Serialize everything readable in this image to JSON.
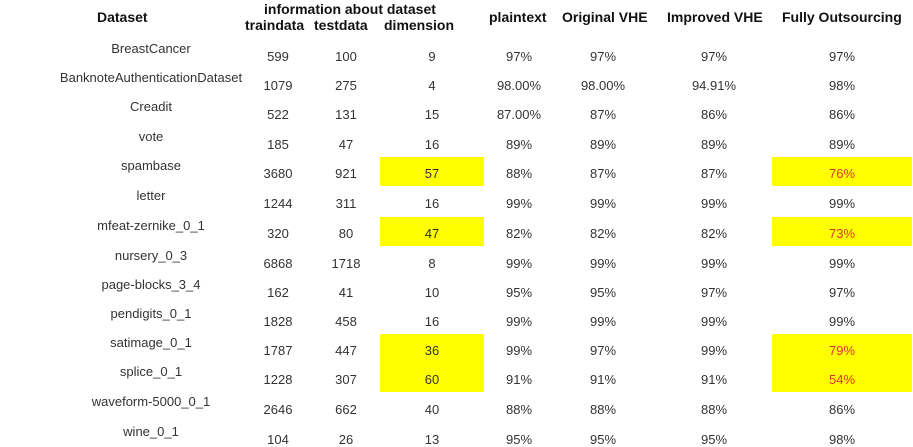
{
  "headers": {
    "dataset": "Dataset",
    "info": "information about dataset",
    "traindata": "traindata",
    "testdata": "testdata",
    "dimension": "dimension",
    "plaintext": "plaintext",
    "original_vhe": "Original VHE",
    "improved_vhe": "Improved VHE",
    "fully_outsourcing": "Fully Outsourcing"
  },
  "highlight_color": "#ffff00",
  "highlight_text_color": "#e0352b",
  "rows": [
    {
      "dataset": "BreastCancer",
      "traindata": "599",
      "testdata": "100",
      "dimension": "9",
      "plaintext": "97%",
      "original_vhe": "97%",
      "improved_vhe": "97%",
      "fully_outsourcing": "97%",
      "highlight": false
    },
    {
      "dataset": "BanknoteAuthenticationDataset",
      "traindata": "1079",
      "testdata": "275",
      "dimension": "4",
      "plaintext": "98.00%",
      "original_vhe": "98.00%",
      "improved_vhe": "94.91%",
      "fully_outsourcing": "98%",
      "highlight": false
    },
    {
      "dataset": "Creadit",
      "traindata": "522",
      "testdata": "131",
      "dimension": "15",
      "plaintext": "87.00%",
      "original_vhe": "87%",
      "improved_vhe": "86%",
      "fully_outsourcing": "86%",
      "highlight": false
    },
    {
      "dataset": "vote",
      "traindata": "185",
      "testdata": "47",
      "dimension": "16",
      "plaintext": "89%",
      "original_vhe": "89%",
      "improved_vhe": "89%",
      "fully_outsourcing": "89%",
      "highlight": false
    },
    {
      "dataset": "spambase",
      "traindata": "3680",
      "testdata": "921",
      "dimension": "57",
      "plaintext": "88%",
      "original_vhe": "87%",
      "improved_vhe": "87%",
      "fully_outsourcing": "76%",
      "highlight": true
    },
    {
      "dataset": "letter",
      "traindata": "1244",
      "testdata": "311",
      "dimension": "16",
      "plaintext": "99%",
      "original_vhe": "99%",
      "improved_vhe": "99%",
      "fully_outsourcing": "99%",
      "highlight": false
    },
    {
      "dataset": "mfeat-zernike_0_1",
      "traindata": "320",
      "testdata": "80",
      "dimension": "47",
      "plaintext": "82%",
      "original_vhe": "82%",
      "improved_vhe": "82%",
      "fully_outsourcing": "73%",
      "highlight": true
    },
    {
      "dataset": "nursery_0_3",
      "traindata": "6868",
      "testdata": "1718",
      "dimension": "8",
      "plaintext": "99%",
      "original_vhe": "99%",
      "improved_vhe": "99%",
      "fully_outsourcing": "99%",
      "highlight": false
    },
    {
      "dataset": "page-blocks_3_4",
      "traindata": "162",
      "testdata": "41",
      "dimension": "10",
      "plaintext": "95%",
      "original_vhe": "95%",
      "improved_vhe": "97%",
      "fully_outsourcing": "97%",
      "highlight": false
    },
    {
      "dataset": "pendigits_0_1",
      "traindata": "1828",
      "testdata": "458",
      "dimension": "16",
      "plaintext": "99%",
      "original_vhe": "99%",
      "improved_vhe": "99%",
      "fully_outsourcing": "99%",
      "highlight": false
    },
    {
      "dataset": "satimage_0_1",
      "traindata": "1787",
      "testdata": "447",
      "dimension": "36",
      "plaintext": "99%",
      "original_vhe": "97%",
      "improved_vhe": "99%",
      "fully_outsourcing": "79%",
      "highlight": true
    },
    {
      "dataset": "splice_0_1",
      "traindata": "1228",
      "testdata": "307",
      "dimension": "60",
      "plaintext": "91%",
      "original_vhe": "91%",
      "improved_vhe": "91%",
      "fully_outsourcing": "54%",
      "highlight": true
    },
    {
      "dataset": "waveform-5000_0_1",
      "traindata": "2646",
      "testdata": "662",
      "dimension": "40",
      "plaintext": "88%",
      "original_vhe": "88%",
      "improved_vhe": "88%",
      "fully_outsourcing": "86%",
      "highlight": false
    },
    {
      "dataset": "wine_0_1",
      "traindata": "104",
      "testdata": "26",
      "dimension": "13",
      "plaintext": "95%",
      "original_vhe": "95%",
      "improved_vhe": "95%",
      "fully_outsourcing": "98%",
      "highlight": false
    }
  ]
}
